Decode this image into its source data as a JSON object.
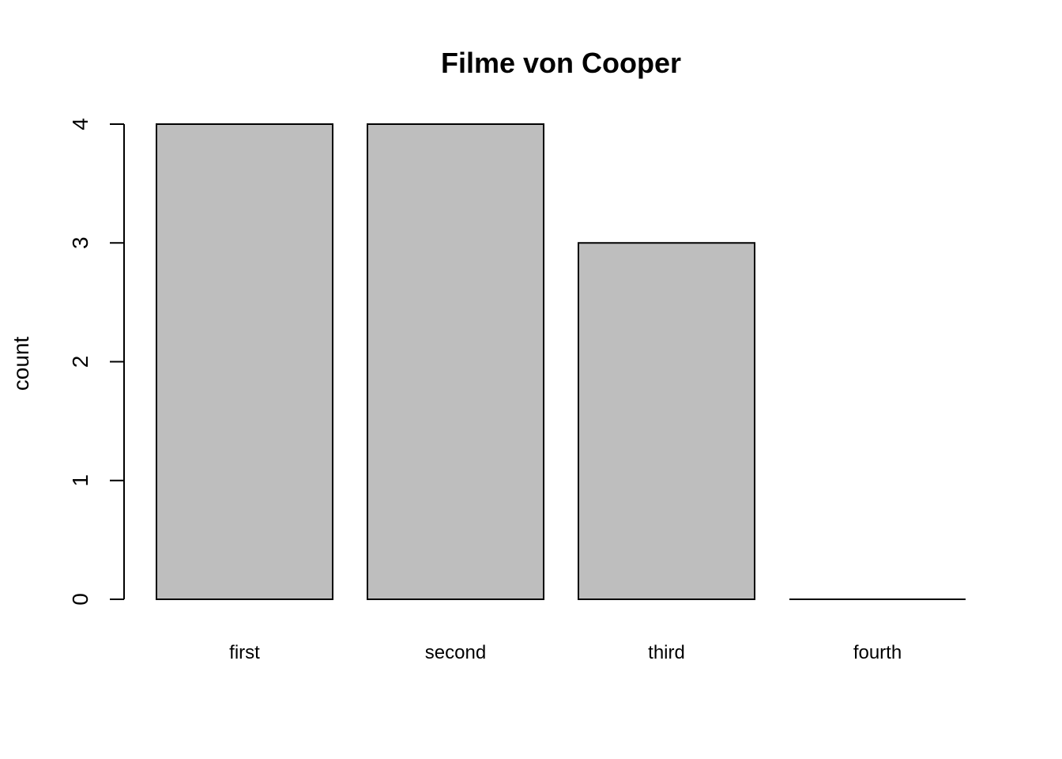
{
  "chart_data": {
    "type": "bar",
    "title": "Filme von Cooper",
    "xlabel": "",
    "ylabel": "count",
    "categories": [
      "first",
      "second",
      "third",
      "fourth"
    ],
    "values": [
      4,
      4,
      3,
      0
    ],
    "ylim": [
      0,
      4
    ],
    "yticks": [
      "0",
      "1",
      "2",
      "3",
      "4"
    ],
    "grid": false,
    "legend": "none",
    "bar_color": "#bebebe",
    "border_color": "#000000"
  }
}
